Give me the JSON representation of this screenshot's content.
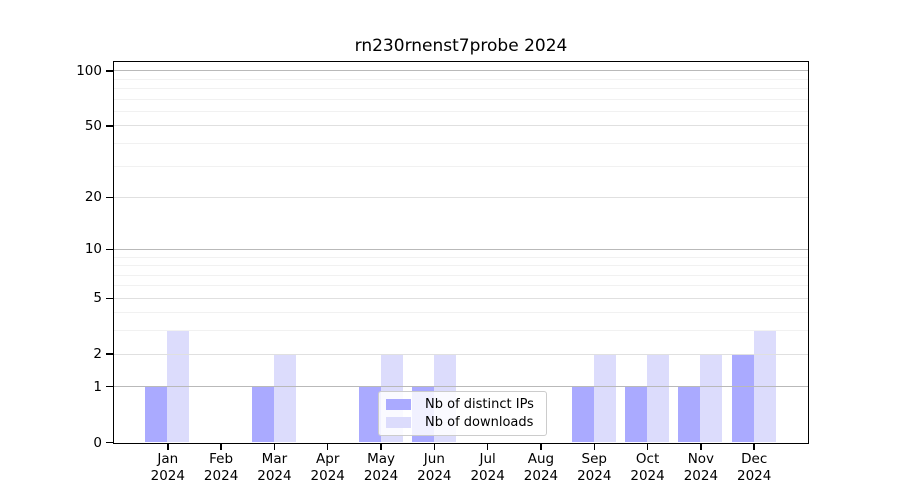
{
  "chart_data": {
    "type": "bar",
    "title": "rn230rnenst7probe 2024",
    "x": {
      "months": [
        "Jan",
        "Feb",
        "Mar",
        "Apr",
        "May",
        "Jun",
        "Jul",
        "Aug",
        "Sep",
        "Oct",
        "Nov",
        "Dec"
      ],
      "year": "2024"
    },
    "categories": [
      "Jan 2024",
      "Feb 2024",
      "Mar 2024",
      "Apr 2024",
      "May 2024",
      "Jun 2024",
      "Jul 2024",
      "Aug 2024",
      "Sep 2024",
      "Oct 2024",
      "Nov 2024",
      "Dec 2024"
    ],
    "series": [
      {
        "name": "Nb of distinct IPs",
        "color": "#aaaaff",
        "values": [
          1,
          0,
          1,
          0,
          1,
          1,
          0,
          0,
          1,
          1,
          1,
          2
        ]
      },
      {
        "name": "Nb of downloads",
        "color": "#dcdcfc",
        "values": [
          3,
          0,
          2,
          0,
          2,
          2,
          0,
          0,
          2,
          2,
          2,
          3
        ]
      }
    ],
    "y_axis": {
      "scale": "log1p",
      "major_ticks": [
        0,
        1,
        2,
        5,
        10,
        20,
        50,
        100
      ],
      "minor_gridlines": [
        3,
        4,
        6,
        7,
        8,
        9,
        30,
        40,
        60,
        70,
        80,
        90
      ],
      "range": [
        0,
        111
      ]
    },
    "grid": true,
    "legend": {
      "position": "lower-center"
    }
  },
  "colors": {
    "background": "#ffffff",
    "axis": "#000000",
    "grid_decade": "#b9b9b9",
    "grid_major": "#e0e0e0",
    "grid_minor": "#f1f1f1",
    "legend_border": "#cccccc"
  }
}
